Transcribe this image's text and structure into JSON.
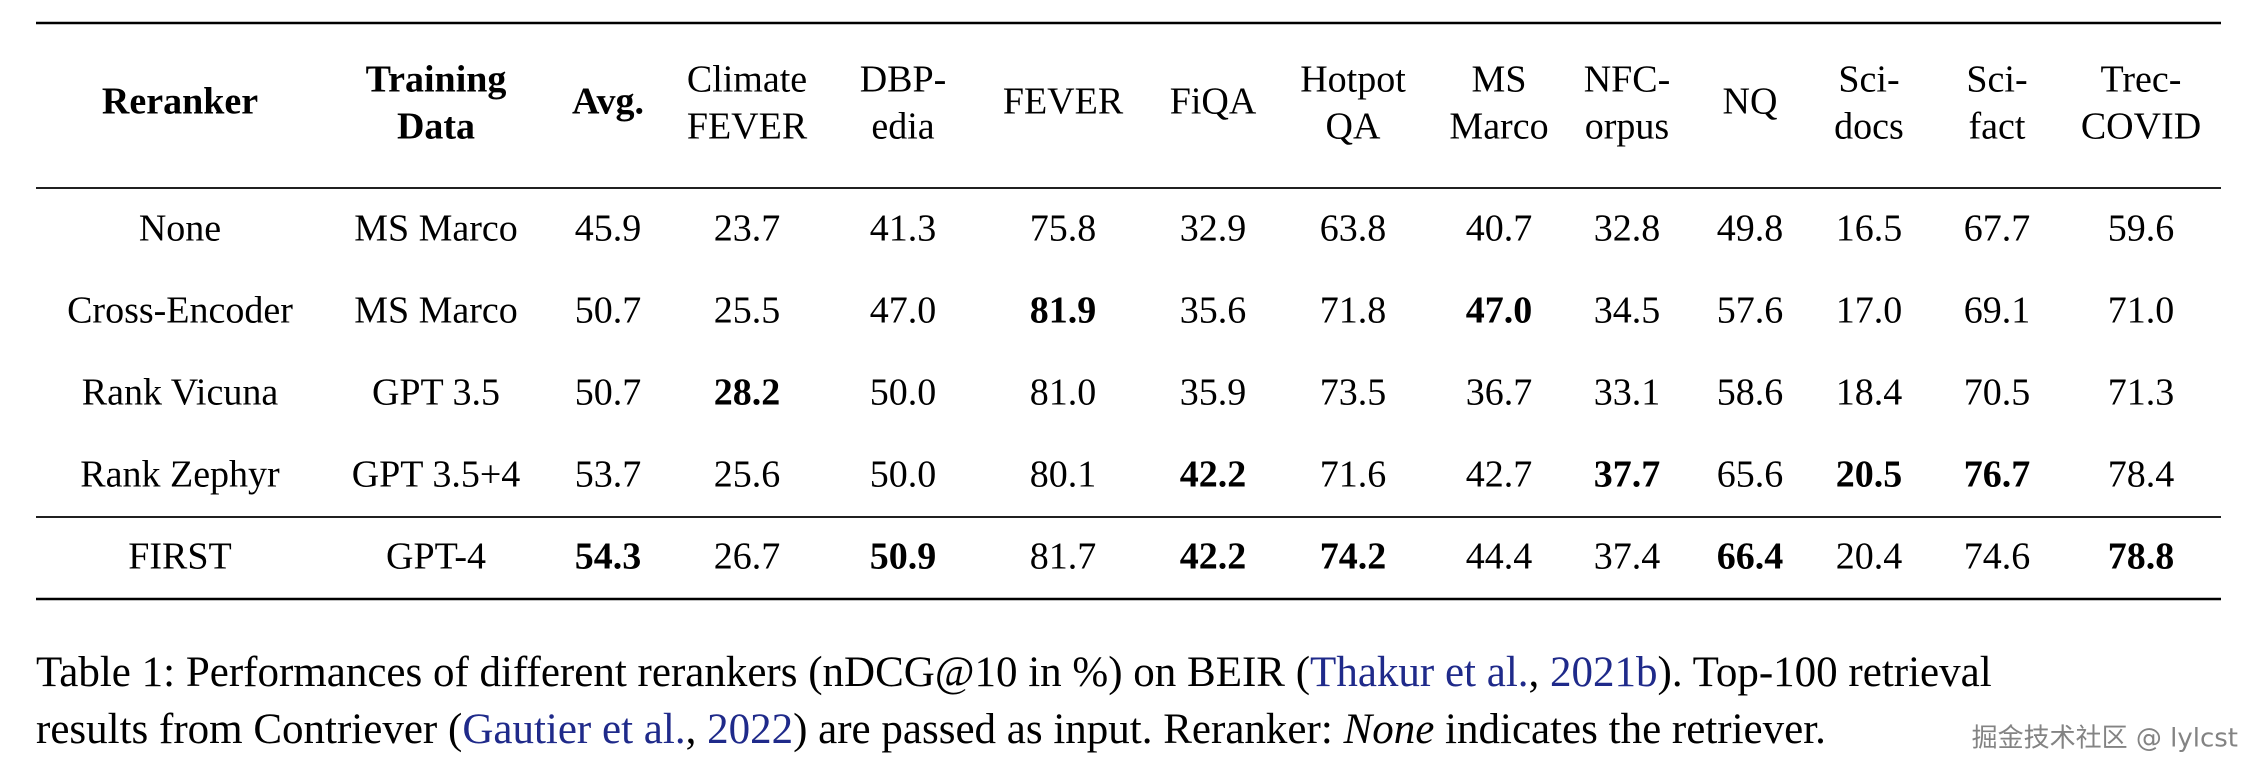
{
  "table": {
    "header": [
      {
        "lines": [
          "Reranker"
        ],
        "bold": true
      },
      {
        "lines": [
          "Training",
          "Data"
        ],
        "bold": true
      },
      {
        "lines": [
          "Avg."
        ],
        "bold": true
      },
      {
        "lines": [
          "Climate",
          "FEVER"
        ],
        "bold": false
      },
      {
        "lines": [
          "DBP-",
          "edia"
        ],
        "bold": false
      },
      {
        "lines": [
          "FEVER"
        ],
        "bold": false
      },
      {
        "lines": [
          "FiQA"
        ],
        "bold": false
      },
      {
        "lines": [
          "Hotpot",
          "QA"
        ],
        "bold": false
      },
      {
        "lines": [
          "MS",
          "Marco"
        ],
        "bold": false
      },
      {
        "lines": [
          "NFC-",
          "orpus"
        ],
        "bold": false
      },
      {
        "lines": [
          "NQ"
        ],
        "bold": false
      },
      {
        "lines": [
          "Sci-",
          "docs"
        ],
        "bold": false
      },
      {
        "lines": [
          "Sci-",
          "fact"
        ],
        "bold": false
      },
      {
        "lines": [
          "Trec-",
          "COVID"
        ],
        "bold": false
      }
    ],
    "rows": [
      {
        "cells": [
          "None",
          "MS Marco",
          "45.9",
          "23.7",
          "41.3",
          "75.8",
          "32.9",
          "63.8",
          "40.7",
          "32.8",
          "49.8",
          "16.5",
          "67.7",
          "59.6"
        ],
        "bold": []
      },
      {
        "cells": [
          "Cross-Encoder",
          "MS Marco",
          "50.7",
          "25.5",
          "47.0",
          "81.9",
          "35.6",
          "71.8",
          "47.0",
          "34.5",
          "57.6",
          "17.0",
          "69.1",
          "71.0"
        ],
        "bold": [
          5,
          8
        ]
      },
      {
        "cells": [
          "Rank Vicuna",
          "GPT 3.5",
          "50.7",
          "28.2",
          "50.0",
          "81.0",
          "35.9",
          "73.5",
          "36.7",
          "33.1",
          "58.6",
          "18.4",
          "70.5",
          "71.3"
        ],
        "bold": [
          3
        ]
      },
      {
        "cells": [
          "Rank Zephyr",
          "GPT 3.5+4",
          "53.7",
          "25.6",
          "50.0",
          "80.1",
          "42.2",
          "71.6",
          "42.7",
          "37.7",
          "65.6",
          "20.5",
          "76.7",
          "78.4"
        ],
        "bold": [
          6,
          9,
          11,
          12
        ]
      },
      {
        "cells": [
          "FIRST",
          "GPT-4",
          "54.3",
          "26.7",
          "50.9",
          "81.7",
          "42.2",
          "74.2",
          "44.4",
          "37.4",
          "66.4",
          "20.4",
          "74.6",
          "78.8"
        ],
        "bold": [
          2,
          4,
          6,
          7,
          10,
          13
        ]
      }
    ]
  },
  "caption": {
    "lines": [
      [
        {
          "text": "Table 1: Performances of different rerankers (nDCG@10 in %) on BEIR ("
        },
        {
          "text": "Thakur et al.",
          "link": true
        },
        {
          "text": ", "
        },
        {
          "text": "2021b",
          "link": true
        },
        {
          "text": "). Top-100 retrieval"
        }
      ],
      [
        {
          "text": "results from Contriever ("
        },
        {
          "text": "Gautier et al.",
          "link": true
        },
        {
          "text": ", "
        },
        {
          "text": "2022",
          "link": true
        },
        {
          "text": ") are passed as input. Reranker: "
        },
        {
          "text": "None",
          "italic": true
        },
        {
          "text": " indicates the retriever."
        }
      ]
    ]
  },
  "watermark": "掘金技术社区 @ lylcst"
}
